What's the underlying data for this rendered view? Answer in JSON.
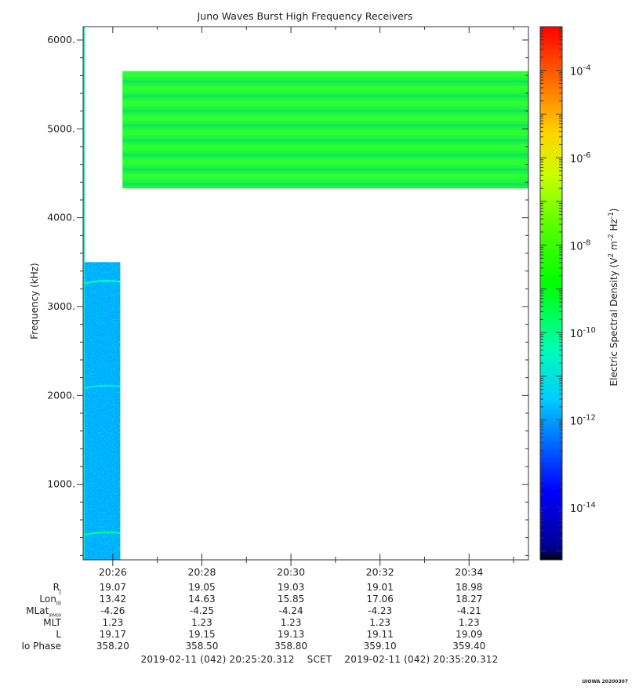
{
  "chart_data": {
    "type": "heatmap",
    "title": "Juno Waves Burst High Frequency Receivers",
    "ylabel": "Frequency (kHz)",
    "ylim": [
      150,
      6150
    ],
    "y_ticks": [
      1000,
      2000,
      3000,
      4000,
      5000,
      6000
    ],
    "y_tick_labels": [
      "1000.",
      "2000.",
      "3000.",
      "4000.",
      "5000.",
      "6000."
    ],
    "xlim": [
      "20:25:20",
      "20:35:20"
    ],
    "x_ticks": [
      "20:26",
      "20:28",
      "20:30",
      "20:32",
      "20:34"
    ],
    "colorbar": {
      "label_parts": [
        "Electric Spectral Density (V",
        "2",
        " m",
        "-2",
        " Hz",
        "-1",
        ")"
      ],
      "scale": "log",
      "range_exponent": [
        -15.2,
        -3.0
      ],
      "tick_exponents": [
        -4,
        -6,
        -8,
        -10,
        -12,
        -14
      ]
    },
    "blocks": [
      {
        "t_start": "20:25:20",
        "t_end": "20:25:22",
        "f_min": 150,
        "f_max": 6150,
        "density_exp": -10.8
      },
      {
        "t_start": "20:25:22",
        "t_end": "20:26:10",
        "f_min": 150,
        "f_max": 3500,
        "density_exp": -12.0,
        "texture": "speckle"
      },
      {
        "t_start": "20:26:13",
        "t_end": "20:35:20",
        "f_min": 4330,
        "f_max": 5650,
        "density_exp": -9.5,
        "texture": "bands"
      }
    ],
    "emission_lines": [
      {
        "f": 450,
        "density_exp": -10.0
      },
      {
        "f": 2100,
        "density_exp": -10.8
      },
      {
        "f": 3280,
        "density_exp": -10.4
      }
    ]
  },
  "ephemeris": {
    "rows": [
      {
        "label": "R",
        "sub": "J",
        "values": [
          "19.07",
          "19.05",
          "19.03",
          "19.01",
          "18.98"
        ]
      },
      {
        "label": "Lon",
        "sub": "III",
        "values": [
          "13.42",
          "14.63",
          "15.85",
          "17.06",
          "18.27"
        ]
      },
      {
        "label": "MLat",
        "sub": "JRM09",
        "values": [
          "-4.26",
          "-4.25",
          "-4.24",
          "-4.23",
          "-4.21"
        ]
      },
      {
        "label": "MLT",
        "sub": "",
        "values": [
          "1.23",
          "1.23",
          "1.23",
          "1.23",
          "1.23"
        ]
      },
      {
        "label": "L",
        "sub": "",
        "values": [
          "19.17",
          "19.15",
          "19.13",
          "19.11",
          "19.09"
        ]
      },
      {
        "label": "Io Phase",
        "sub": "",
        "values": [
          "358.20",
          "358.50",
          "358.80",
          "359.10",
          "359.40"
        ]
      }
    ]
  },
  "scet": {
    "start": "2019-02-11 (042) 20:25:20.312",
    "label": "SCET",
    "end": "2019-02-11 (042) 20:35:20.312"
  },
  "credit": "UIOWA 20200307"
}
